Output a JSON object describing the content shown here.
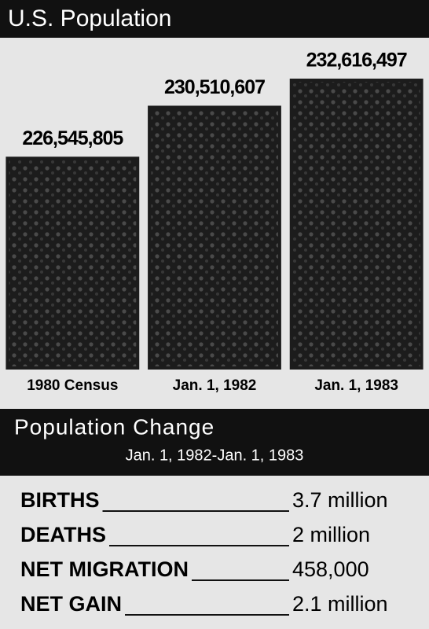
{
  "chart_data": {
    "type": "bar",
    "title": "U.S. Population",
    "categories": [
      "1980 Census",
      "Jan. 1, 1982",
      "Jan. 1, 1983"
    ],
    "values": [
      226545805,
      230510607,
      232616497
    ],
    "value_labels": [
      "226,545,805",
      "230,510,607",
      "232,616,497"
    ],
    "color": "#1c1c1c",
    "ylim": [
      210000000,
      235000000
    ]
  },
  "table": {
    "title": "Population Change",
    "subtitle": "Jan. 1, 1982-Jan. 1, 1983",
    "rows": [
      [
        "BIRTHS",
        "3.7 million"
      ],
      [
        "DEATHS",
        "2 million"
      ],
      [
        "NET MIGRATION",
        "458,000"
      ],
      [
        "NET GAIN",
        "2.1 million"
      ]
    ]
  }
}
